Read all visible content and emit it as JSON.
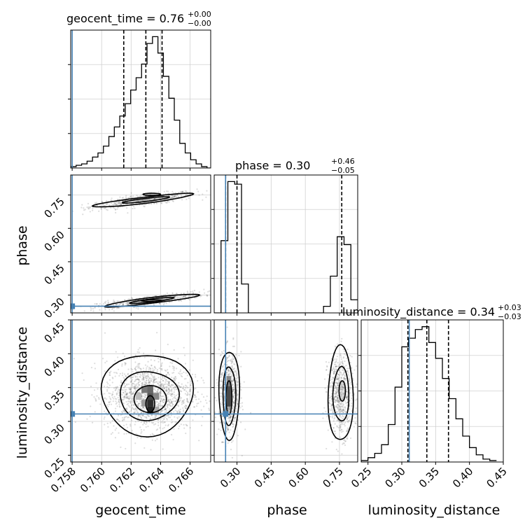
{
  "chart_data": {
    "type": "corner",
    "params": [
      {
        "name": "geocent_time",
        "title": "geocent_time = 0.76",
        "err_plus": "+0.00",
        "err_minus": "−0.00",
        "xlim": [
          0.7579,
          0.7674
        ],
        "ticks": [
          0.758,
          0.76,
          0.762,
          0.764,
          0.766
        ],
        "tick_labels": [
          "0.758",
          "0.760",
          "0.762",
          "0.764",
          "0.766"
        ],
        "truth": 0.758,
        "quantiles": [
          0.7615,
          0.763,
          0.7641
        ],
        "hist": {
          "edges": [
            0.7579,
            0.75827,
            0.75864,
            0.75901,
            0.75938,
            0.75975,
            0.76012,
            0.76049,
            0.76086,
            0.76123,
            0.7616,
            0.76197,
            0.76234,
            0.76271,
            0.76308,
            0.76345,
            0.76382,
            0.76419,
            0.76456,
            0.76493,
            0.7653,
            0.76567,
            0.76604,
            0.76641,
            0.76678,
            0.76715,
            0.7674
          ],
          "values": [
            1,
            2,
            3,
            5,
            8,
            11,
            16,
            23,
            30,
            38,
            47,
            57,
            66,
            76,
            91,
            96,
            84,
            67,
            51,
            35,
            18,
            11,
            6,
            3,
            1,
            0
          ]
        }
      },
      {
        "name": "phase",
        "title": "phase = 0.30",
        "err_plus": "+0.46",
        "err_minus": "−0.05",
        "xlim": [
          0.2,
          0.83
        ],
        "ticks": [
          0.3,
          0.45,
          0.6,
          0.75
        ],
        "tick_labels": [
          "0.30",
          "0.45",
          "0.60",
          "0.75"
        ],
        "truth": 0.25,
        "quantiles": [
          0.25,
          0.3,
          0.76
        ],
        "hist": {
          "edges": [
            0.2,
            0.23,
            0.26,
            0.29,
            0.32,
            0.35,
            0.38,
            0.41,
            0.44,
            0.47,
            0.5,
            0.53,
            0.56,
            0.59,
            0.62,
            0.65,
            0.68,
            0.71,
            0.74,
            0.77,
            0.8,
            0.83
          ],
          "values": [
            0,
            55,
            100,
            98,
            22,
            0,
            0,
            0,
            0,
            0,
            0,
            0,
            0,
            0,
            0,
            0,
            5,
            28,
            58,
            52,
            10
          ]
        }
      },
      {
        "name": "luminosity_distance",
        "title": "luminosity_distance = 0.34",
        "err_plus": "+0.03",
        "err_minus": "−0.03",
        "xlim": [
          0.24,
          0.45
        ],
        "ticks": [
          0.25,
          0.3,
          0.35,
          0.4,
          0.45
        ],
        "tick_labels": [
          "0.25",
          "0.30",
          "0.35",
          "0.40",
          "0.45"
        ],
        "truth": 0.311,
        "quantiles": [
          0.309,
          0.337,
          0.369
        ],
        "hist": {
          "edges": [
            0.24,
            0.25,
            0.26,
            0.27,
            0.28,
            0.29,
            0.3,
            0.31,
            0.32,
            0.33,
            0.34,
            0.35,
            0.36,
            0.37,
            0.38,
            0.39,
            0.4,
            0.41,
            0.42,
            0.43,
            0.44
          ],
          "values": [
            1,
            3,
            6,
            12,
            26,
            52,
            80,
            86,
            92,
            94,
            83,
            72,
            58,
            44,
            30,
            18,
            10,
            5,
            2,
            1
          ]
        }
      }
    ],
    "ylim": {
      "phase": [
        0.22,
        0.84
      ],
      "luminosity_distance": [
        0.24,
        0.45
      ]
    },
    "yticks": {
      "phase": {
        "values": [
          0.3,
          0.45,
          0.6,
          0.75
        ],
        "labels": [
          "0.30",
          "0.45",
          "0.60",
          "0.75"
        ]
      },
      "luminosity_distance": {
        "values": [
          0.25,
          0.3,
          0.35,
          0.4,
          0.45
        ],
        "labels": [
          "0.25",
          "0.30",
          "0.35",
          "0.40",
          "0.45"
        ]
      }
    },
    "truth_color": "#4682b4",
    "hist_color": "#000000",
    "grid": true
  }
}
